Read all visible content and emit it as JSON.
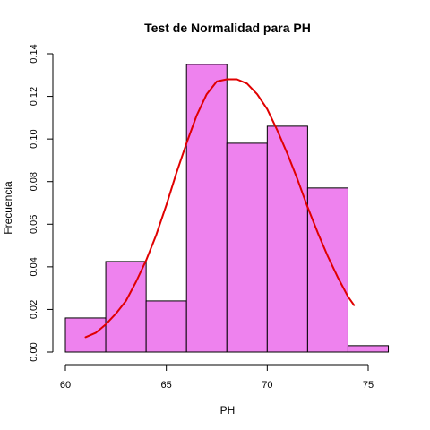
{
  "chart_data": {
    "type": "bar",
    "title": "Test de Normalidad para  PH",
    "xlabel": "PH",
    "ylabel": "Frecuencia",
    "bins": [
      {
        "from": 60,
        "to": 62,
        "density": 0.016
      },
      {
        "from": 62,
        "to": 64,
        "density": 0.0425
      },
      {
        "from": 64,
        "to": 66,
        "density": 0.024
      },
      {
        "from": 66,
        "to": 68,
        "density": 0.135
      },
      {
        "from": 68,
        "to": 70,
        "density": 0.098
      },
      {
        "from": 70,
        "to": 72,
        "density": 0.106
      },
      {
        "from": 72,
        "to": 74,
        "density": 0.077
      },
      {
        "from": 74,
        "to": 76,
        "density": 0.003
      }
    ],
    "density_curve": {
      "x": [
        61,
        61.5,
        62,
        62.5,
        63,
        63.5,
        64,
        64.5,
        65,
        65.5,
        66,
        66.5,
        67,
        67.5,
        68,
        68.5,
        69,
        69.5,
        70,
        70.5,
        71,
        71.5,
        72,
        72.5,
        73,
        73.5,
        74,
        74.3
      ],
      "y": [
        0.007,
        0.009,
        0.013,
        0.018,
        0.024,
        0.033,
        0.043,
        0.055,
        0.069,
        0.084,
        0.098,
        0.111,
        0.121,
        0.127,
        0.128,
        0.128,
        0.126,
        0.121,
        0.114,
        0.104,
        0.093,
        0.081,
        0.068,
        0.056,
        0.045,
        0.035,
        0.026,
        0.022
      ]
    },
    "xticks": [
      60,
      65,
      70,
      75
    ],
    "yticks": [
      0.0,
      0.02,
      0.04,
      0.06,
      0.08,
      0.1,
      0.12,
      0.14
    ],
    "ytick_labels": [
      "0.00",
      "0.02",
      "0.04",
      "0.06",
      "0.08",
      "0.10",
      "0.12",
      "0.14"
    ],
    "xlim": [
      60,
      76
    ],
    "ylim": [
      0,
      0.14
    ],
    "colors": {
      "bar_fill": "#EE82EE",
      "bar_stroke": "#000000",
      "curve": "#E00000"
    },
    "grid": false,
    "legend": "none"
  }
}
